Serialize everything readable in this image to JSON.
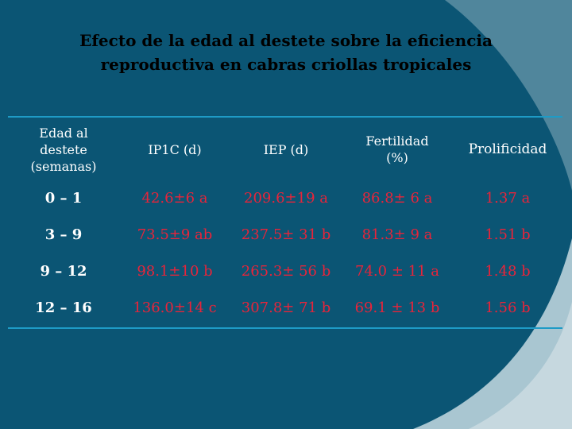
{
  "slide": {
    "title_line1": "Efecto de  la edad al destete sobre la eficiencia",
    "title_line2": "reproductiva en cabras criollas tropicales"
  },
  "table": {
    "headers": [
      {
        "line1": "Edad al",
        "line2": "destete",
        "line3": "(semanas)"
      },
      {
        "line1": "IP1C (d)"
      },
      {
        "line1": "IEP (d)"
      },
      {
        "line1": "Fertilidad",
        "line2": "(%)"
      },
      {
        "line1": "Prolificidad"
      }
    ],
    "rows": [
      {
        "age": "0 – 1",
        "ip1c": "42.6±6 a",
        "iep": "209.6±19 a",
        "fert": "86.8± 6 a",
        "prol": "1.37 a"
      },
      {
        "age": "3 – 9",
        "ip1c": "73.5±9 ab",
        "iep": "237.5± 31 b",
        "fert": "81.3± 9 a",
        "prol": "1.51 b"
      },
      {
        "age": "9 – 12",
        "ip1c": "98.1±10 b",
        "iep": "265.3± 56 b",
        "fert": "74.0 ± 11 a",
        "prol": "1.48 b"
      },
      {
        "age": "12 – 16",
        "ip1c": "136.0±14 c",
        "iep": "307.8± 71 b",
        "fert": "69.1 ± 13 b",
        "prol": "1.56 b"
      }
    ]
  },
  "colors": {
    "background": "#0b5574",
    "swoosh_light": "#a9c6d1",
    "rule": "#1e9bc6",
    "value_text": "#e8243a",
    "header_text": "#ffffff"
  }
}
